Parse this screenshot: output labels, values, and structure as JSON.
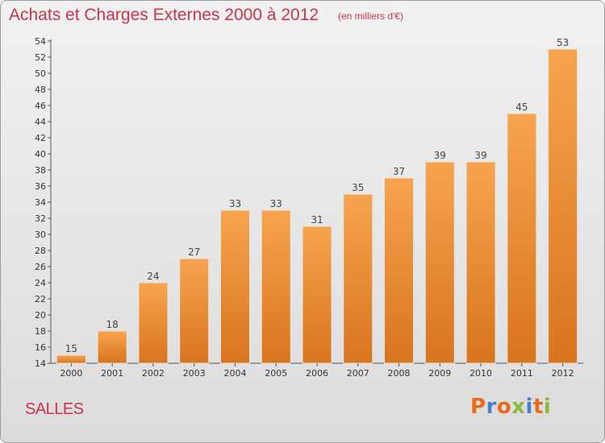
{
  "header": {
    "title": "Achats et Charges Externes 2000 à 2012",
    "unit": "(en milliers d'€)"
  },
  "footer": {
    "town": "SALLES",
    "logo": "Proxiti"
  },
  "colors": {
    "bar_top": "#f7a44e",
    "bar_bottom": "#d9741d",
    "title": "#c8344e",
    "logo_letters": [
      "#e86c1a",
      "#4a7fd0",
      "#e86c1a",
      "#8bb93c",
      "#4a7fd0",
      "#e86c1a",
      "#8bb93c"
    ]
  },
  "chart_data": {
    "type": "bar",
    "title": "Achats et Charges Externes 2000 à 2012",
    "xlabel": "",
    "ylabel": "",
    "categories": [
      "2000",
      "2001",
      "2002",
      "2003",
      "2004",
      "2005",
      "2006",
      "2007",
      "2008",
      "2009",
      "2010",
      "2011",
      "2012"
    ],
    "values": [
      15,
      18,
      24,
      27,
      33,
      33,
      31,
      35,
      37,
      39,
      39,
      45,
      53
    ],
    "ylim": [
      14,
      54
    ],
    "yticks": [
      14,
      16,
      18,
      20,
      22,
      24,
      26,
      28,
      30,
      32,
      34,
      36,
      38,
      40,
      42,
      44,
      46,
      48,
      50,
      52,
      54
    ],
    "grid": false,
    "data_labels": true
  }
}
